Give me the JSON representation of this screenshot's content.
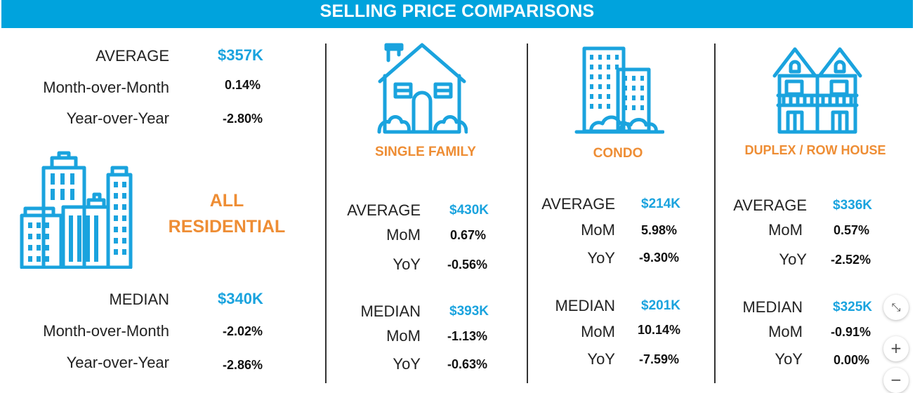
{
  "header": {
    "title": "SELLING PRICE COMPARISONS"
  },
  "colors": {
    "header_bg": "#00a3dd",
    "blue_value": "#1aa3de",
    "category": "#ee8d34",
    "icon": "#1aa3de"
  },
  "all_residential": {
    "category_line1": "ALL",
    "category_line2": "RESIDENTIAL",
    "icon": "city-buildings-icon",
    "average": {
      "label": "AVERAGE",
      "value": "$357K",
      "mom_label": "Month-over-Month",
      "mom": "0.14%",
      "yoy_label": "Year-over-Year",
      "yoy": "-2.80%"
    },
    "median": {
      "label": "MEDIAN",
      "value": "$340K",
      "mom_label": "Month-over-Month",
      "mom": "-2.02%",
      "yoy_label": "Year-over-Year",
      "yoy": "-2.86%"
    }
  },
  "single_family": {
    "category": "SINGLE FAMILY",
    "icon": "house-icon",
    "average": {
      "label": "AVERAGE",
      "value": "$430K",
      "mom_label": "MoM",
      "mom": "0.67%",
      "yoy_label": "YoY",
      "yoy": "-0.56%"
    },
    "median": {
      "label": "MEDIAN",
      "value": "$393K",
      "mom_label": "MoM",
      "mom": "-1.13%",
      "yoy_label": "YoY",
      "yoy": "-0.63%"
    }
  },
  "condo": {
    "category": "CONDO",
    "icon": "condo-building-icon",
    "average": {
      "label": "AVERAGE",
      "value": "$214K",
      "mom_label": "MoM",
      "mom": "5.98%",
      "yoy_label": "YoY",
      "yoy": "-9.30%"
    },
    "median": {
      "label": "MEDIAN",
      "value": "$201K",
      "mom_label": "MoM",
      "mom": "10.14%",
      "yoy_label": "YoY",
      "yoy": "-7.59%"
    }
  },
  "duplex": {
    "category": "DUPLEX / ROW HOUSE",
    "icon": "row-house-icon",
    "average": {
      "label": "AVERAGE",
      "value": "$336K",
      "mom_label": "MoM",
      "mom": "0.57%",
      "yoy_label": "YoY",
      "yoy": "-2.52%"
    },
    "median": {
      "label": "MEDIAN",
      "value": "$325K",
      "mom_label": "MoM",
      "mom": "-0.91%",
      "yoy_label": "YoY",
      "yoy": "0.00%"
    }
  },
  "zoom_controls": {
    "fit_icon": "collapse-arrows-icon",
    "fit_symbol": "⤡",
    "zoom_in_icon": "plus-icon",
    "zoom_in_symbol": "+",
    "zoom_out_icon": "minus-icon",
    "zoom_out_symbol": "−"
  }
}
